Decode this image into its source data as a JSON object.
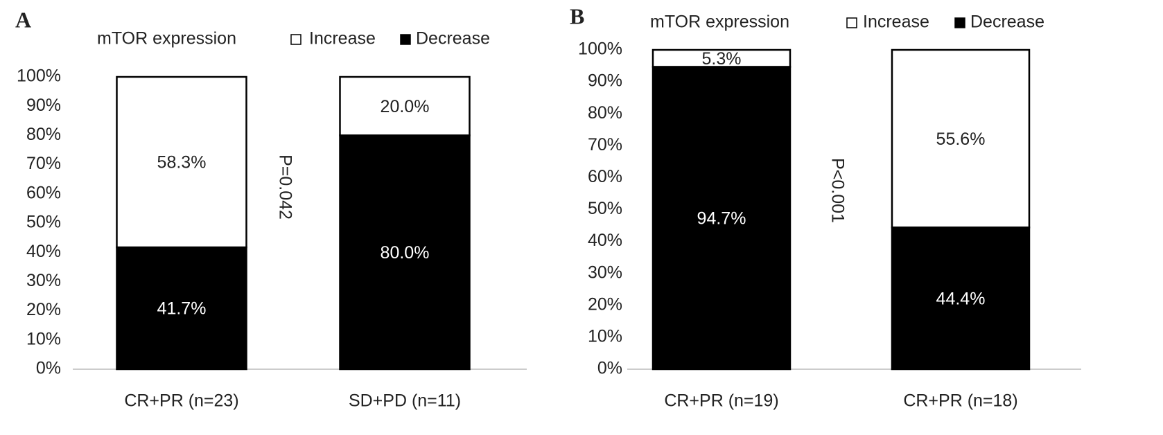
{
  "chart_data": [
    {
      "type": "bar",
      "stacked": true,
      "panel": "A",
      "legend_title": "mTOR expression",
      "annotation": "P=0.042",
      "categories": [
        "CR+PR (n=23)",
        "SD+PD (n=11)"
      ],
      "series": [
        {
          "name": "Decrease",
          "color": "#000000",
          "values": [
            41.7,
            80.0
          ],
          "value_labels": [
            "41.7%",
            "80.0%"
          ]
        },
        {
          "name": "Increase",
          "color": "#ffffff",
          "values": [
            58.3,
            20.0
          ],
          "value_labels": [
            "58.3%",
            "20.0%"
          ]
        }
      ],
      "ylim": [
        0,
        100
      ],
      "yticks": [
        {
          "value": 0,
          "label": "0%"
        },
        {
          "value": 10,
          "label": "10%"
        },
        {
          "value": 20,
          "label": "20%"
        },
        {
          "value": 30,
          "label": "30%"
        },
        {
          "value": 40,
          "label": "40%"
        },
        {
          "value": 50,
          "label": "50%"
        },
        {
          "value": 60,
          "label": "60%"
        },
        {
          "value": 70,
          "label": "70%"
        },
        {
          "value": 80,
          "label": "80%"
        },
        {
          "value": 90,
          "label": "90%"
        },
        {
          "value": 100,
          "label": "100%"
        }
      ]
    },
    {
      "type": "bar",
      "stacked": true,
      "panel": "B",
      "legend_title": "mTOR expression",
      "annotation": "P<0.001",
      "categories": [
        "CR+PR (n=19)",
        "CR+PR (n=18)"
      ],
      "series": [
        {
          "name": "Decrease",
          "color": "#000000",
          "values": [
            94.7,
            44.4
          ],
          "value_labels": [
            "94.7%",
            "44.4%"
          ]
        },
        {
          "name": "Increase",
          "color": "#ffffff",
          "values": [
            5.3,
            55.6
          ],
          "value_labels": [
            "5.3%",
            "55.6%"
          ]
        }
      ],
      "ylim": [
        0,
        100
      ],
      "yticks": [
        {
          "value": 0,
          "label": "0%"
        },
        {
          "value": 10,
          "label": "10%"
        },
        {
          "value": 20,
          "label": "20%"
        },
        {
          "value": 30,
          "label": "30%"
        },
        {
          "value": 40,
          "label": "40%"
        },
        {
          "value": 50,
          "label": "50%"
        },
        {
          "value": 60,
          "label": "60%"
        },
        {
          "value": 70,
          "label": "70%"
        },
        {
          "value": 80,
          "label": "80%"
        },
        {
          "value": 90,
          "label": "90%"
        },
        {
          "value": 100,
          "label": "100%"
        }
      ]
    }
  ]
}
